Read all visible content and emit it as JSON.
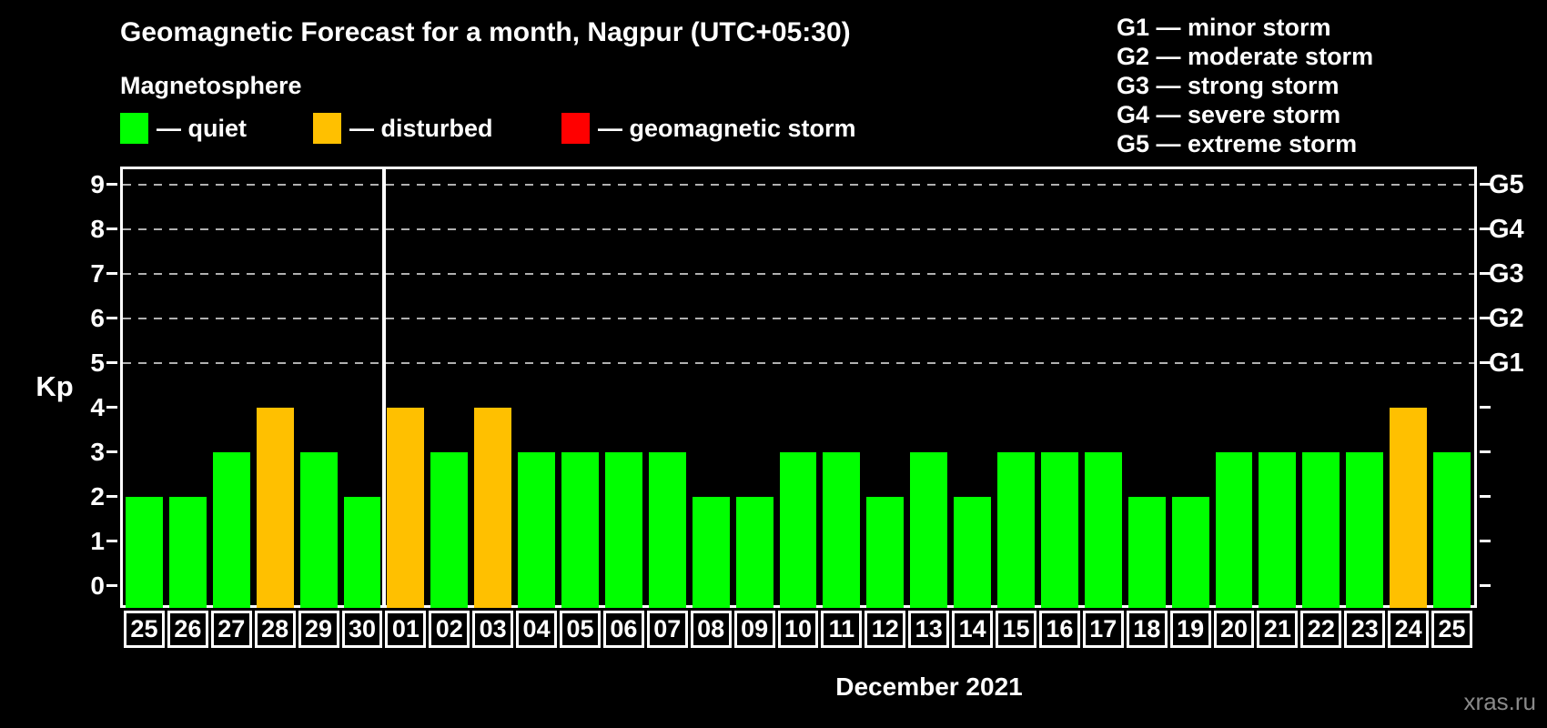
{
  "title": "Geomagnetic Forecast for a month, Nagpur (UTC+05:30)",
  "legend": {
    "heading": "Magnetosphere",
    "items": [
      {
        "key": "quiet",
        "label": "— quiet",
        "color": "#00ff00"
      },
      {
        "key": "disturbed",
        "label": "— disturbed",
        "color": "#ffc000"
      },
      {
        "key": "storm",
        "label": "— geomagnetic storm",
        "color": "#ff0000"
      }
    ]
  },
  "g_legend": {
    "items": [
      "G1 — minor storm",
      "G2 — moderate storm",
      "G3 — strong storm",
      "G4 — severe storm",
      "G5 — extreme storm"
    ]
  },
  "watermark": "xras.ru",
  "chart_data": {
    "type": "bar",
    "title": "Geomagnetic Forecast for a month, Nagpur (UTC+05:30)",
    "ylabel": "Kp",
    "xlabel": "December 2021",
    "ylim": [
      0,
      9
    ],
    "y_ticks": [
      0,
      1,
      2,
      3,
      4,
      5,
      6,
      7,
      8,
      9
    ],
    "gridlines_at": [
      5,
      6,
      7,
      8,
      9
    ],
    "grid": "dashed horizontal lines at Kp 5–9",
    "legend_position": "top-left",
    "right_axis_labels": [
      {
        "label": "G1",
        "kp": 5
      },
      {
        "label": "G2",
        "kp": 6
      },
      {
        "label": "G3",
        "kp": 7
      },
      {
        "label": "G4",
        "kp": 8
      },
      {
        "label": "G5",
        "kp": 9
      }
    ],
    "separator_after_index": 5,
    "categories": [
      "25",
      "26",
      "27",
      "28",
      "29",
      "30",
      "01",
      "02",
      "03",
      "04",
      "05",
      "06",
      "07",
      "08",
      "09",
      "10",
      "11",
      "12",
      "13",
      "14",
      "15",
      "16",
      "17",
      "18",
      "19",
      "20",
      "21",
      "22",
      "23",
      "24",
      "25"
    ],
    "values": [
      2,
      2,
      3,
      4,
      3,
      2,
      4,
      3,
      4,
      3,
      3,
      3,
      3,
      2,
      2,
      3,
      3,
      2,
      3,
      2,
      3,
      3,
      3,
      2,
      2,
      3,
      3,
      3,
      3,
      4,
      3
    ],
    "statuses": [
      "quiet",
      "quiet",
      "quiet",
      "disturbed",
      "quiet",
      "quiet",
      "disturbed",
      "quiet",
      "disturbed",
      "quiet",
      "quiet",
      "quiet",
      "quiet",
      "quiet",
      "quiet",
      "quiet",
      "quiet",
      "quiet",
      "quiet",
      "quiet",
      "quiet",
      "quiet",
      "quiet",
      "quiet",
      "quiet",
      "quiet",
      "quiet",
      "quiet",
      "quiet",
      "disturbed",
      "quiet"
    ],
    "colors": {
      "quiet": "#00ff00",
      "disturbed": "#ffc000",
      "storm": "#ff0000"
    }
  }
}
